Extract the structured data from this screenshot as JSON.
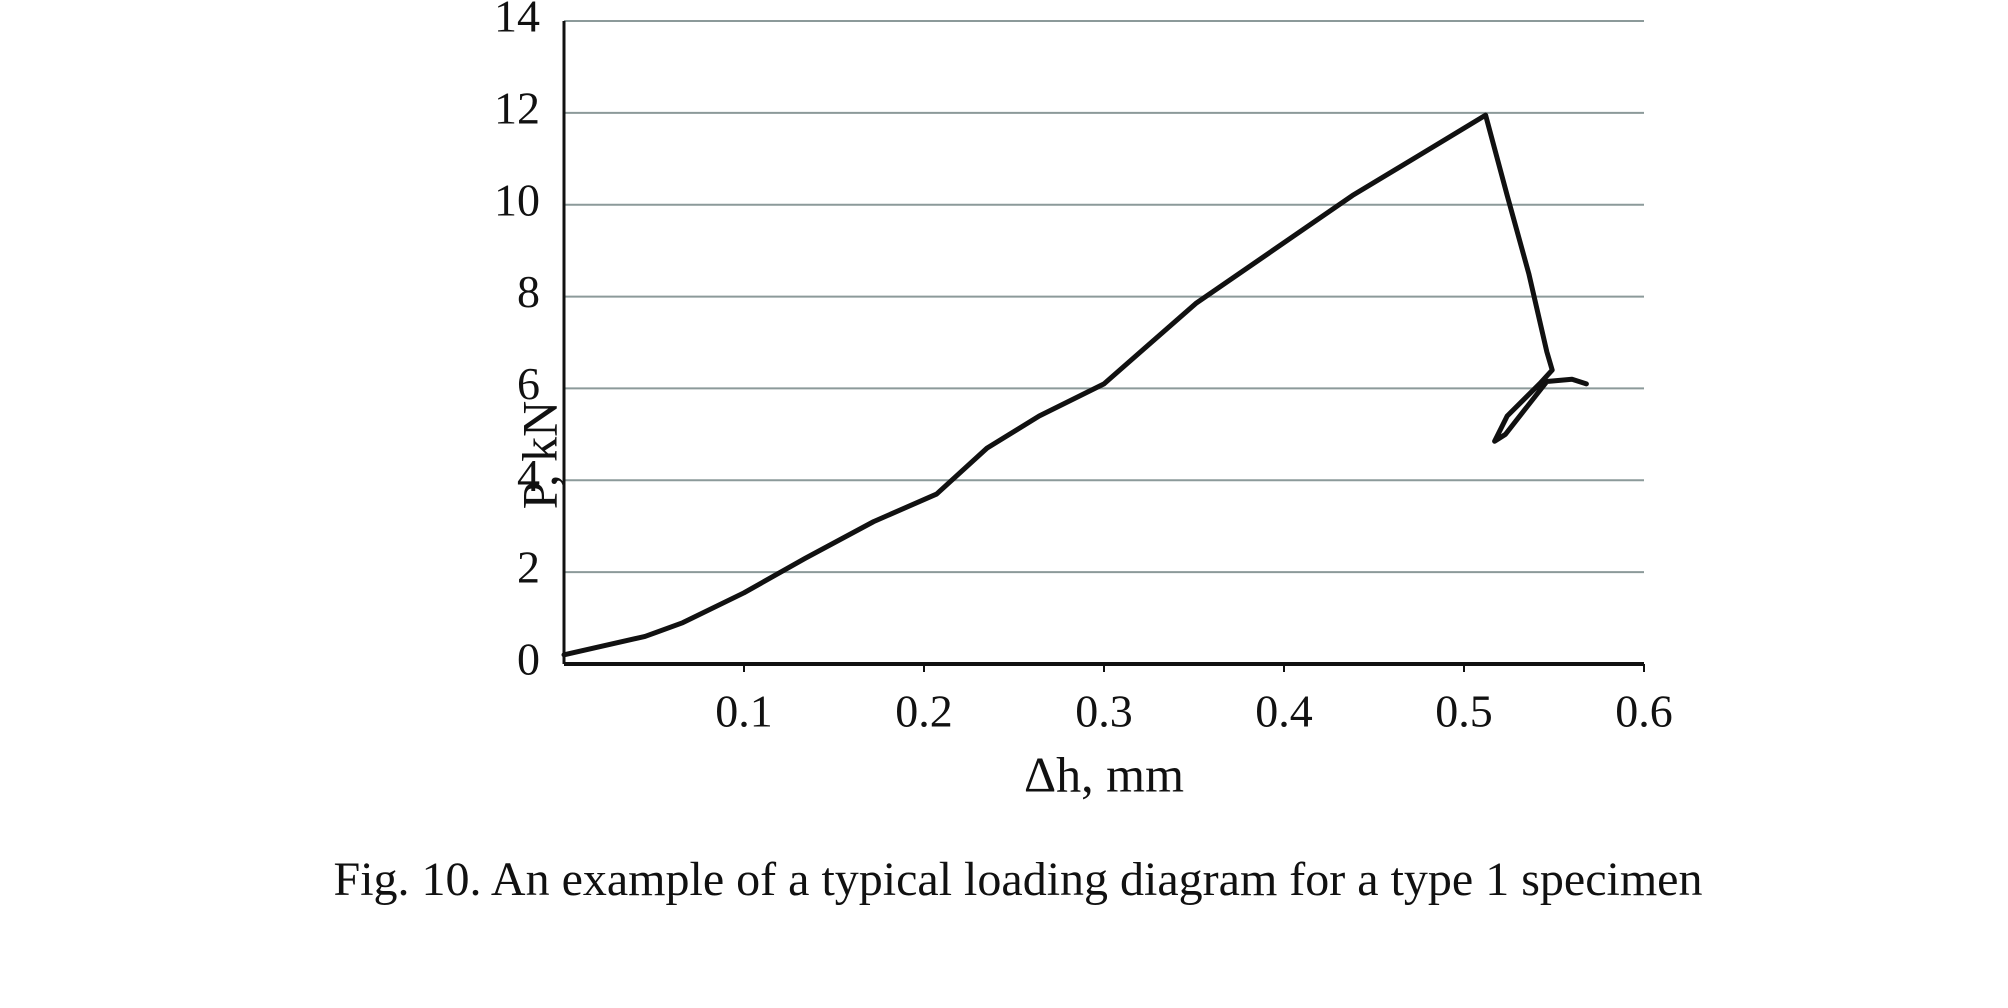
{
  "chart_data": {
    "type": "line",
    "x_label": "Δh, mm",
    "y_label": "P, kN",
    "caption": "Fig. 10. An example of a typical loading diagram for a type 1 specimen",
    "x": [
      0.0,
      0.045,
      0.066,
      0.1,
      0.134,
      0.172,
      0.207,
      0.235,
      0.264,
      0.3,
      0.351,
      0.401,
      0.438,
      0.474,
      0.512,
      0.524,
      0.536,
      0.546,
      0.549,
      0.542,
      0.524,
      0.517,
      0.523,
      0.539,
      0.546,
      0.56,
      0.568
    ],
    "series": [
      {
        "name": "P",
        "color": "#111111",
        "values": [
          0.2,
          0.6,
          0.9,
          1.55,
          2.3,
          3.1,
          3.7,
          4.7,
          5.4,
          6.1,
          7.85,
          9.2,
          10.2,
          11.05,
          11.95,
          10.2,
          8.5,
          6.8,
          6.4,
          6.1,
          5.4,
          4.85,
          5.0,
          5.8,
          6.15,
          6.2,
          6.1
        ]
      }
    ],
    "xlim": [
      0,
      0.6
    ],
    "xticks": [
      0.1,
      0.2,
      0.3,
      0.4,
      0.5,
      0.6
    ],
    "ylim": [
      0,
      14
    ],
    "yticks": [
      0,
      2,
      4,
      6,
      8,
      10,
      12,
      14
    ],
    "grid": true,
    "grid_color": "#8c9a9a"
  }
}
